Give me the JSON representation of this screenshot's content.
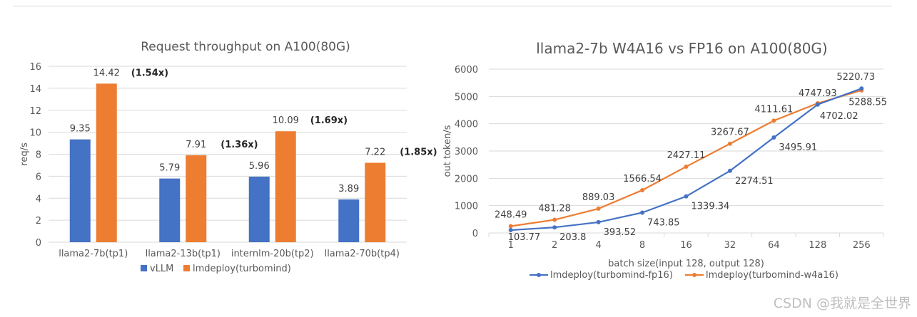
{
  "watermark": "CSDN @我就是全世界",
  "colors": {
    "blue": "#4472c4",
    "orange": "#ed7d31",
    "grid": "#d9d9d9"
  },
  "chart_data": [
    {
      "type": "bar",
      "title": "Request throughput on A100(80G)",
      "ylabel": "req/s",
      "xlabel": "",
      "ylim": [
        0,
        16
      ],
      "yticks": [
        "0",
        "2",
        "4",
        "6",
        "8",
        "10",
        "12",
        "14",
        "16"
      ],
      "categories": [
        "llama2-7b(tp1)",
        "llama2-13b(tp1)",
        "internlm-20b(tp2)",
        "llama2-70b(tp4)"
      ],
      "series": [
        {
          "name": "vLLM",
          "values": [
            9.35,
            5.79,
            5.96,
            3.89
          ],
          "labels": [
            "9.35",
            "5.79",
            "5.96",
            "3.89"
          ]
        },
        {
          "name": "lmdeploy(turbomind)",
          "values": [
            14.42,
            7.91,
            10.09,
            7.22
          ],
          "labels": [
            "14.42",
            "7.91",
            "10.09",
            "7.22"
          ]
        }
      ],
      "ratios": [
        "(1.54x)",
        "(1.36x)",
        "(1.69x)",
        "(1.85x)"
      ],
      "grid": true,
      "legend": "bottom"
    },
    {
      "type": "line",
      "title": "llama2-7b W4A16 vs FP16 on A100(80G)",
      "ylabel": "out token/s",
      "xlabel": "batch size(input 128, output 128)",
      "ylim": [
        0,
        6000
      ],
      "yticks": [
        "0",
        "1000",
        "2000",
        "3000",
        "4000",
        "5000",
        "6000"
      ],
      "x": [
        "1",
        "2",
        "4",
        "8",
        "16",
        "32",
        "64",
        "128",
        "256"
      ],
      "series": [
        {
          "name": "lmdeploy(turbomind-fp16)",
          "values": [
            103.77,
            203.8,
            393.52,
            743.85,
            1339.34,
            2274.51,
            3495.91,
            4702.02,
            5288.55
          ],
          "labels": [
            "103.77",
            "203.8",
            "393.52",
            "743.85",
            "1339.34",
            "2274.51",
            "3495.91",
            "4702.02",
            "5288.55"
          ]
        },
        {
          "name": "lmdeploy(turbomind-w4a16)",
          "values": [
            248.49,
            481.28,
            889.03,
            1566.54,
            2427.11,
            3267.67,
            4111.61,
            4747.93,
            5220.73
          ],
          "labels": [
            "248.49",
            "481.28",
            "889.03",
            "1566.54",
            "2427.11",
            "3267.67",
            "4111.61",
            "4747.93",
            "5220.73"
          ]
        }
      ],
      "grid": true,
      "legend": "bottom"
    }
  ]
}
